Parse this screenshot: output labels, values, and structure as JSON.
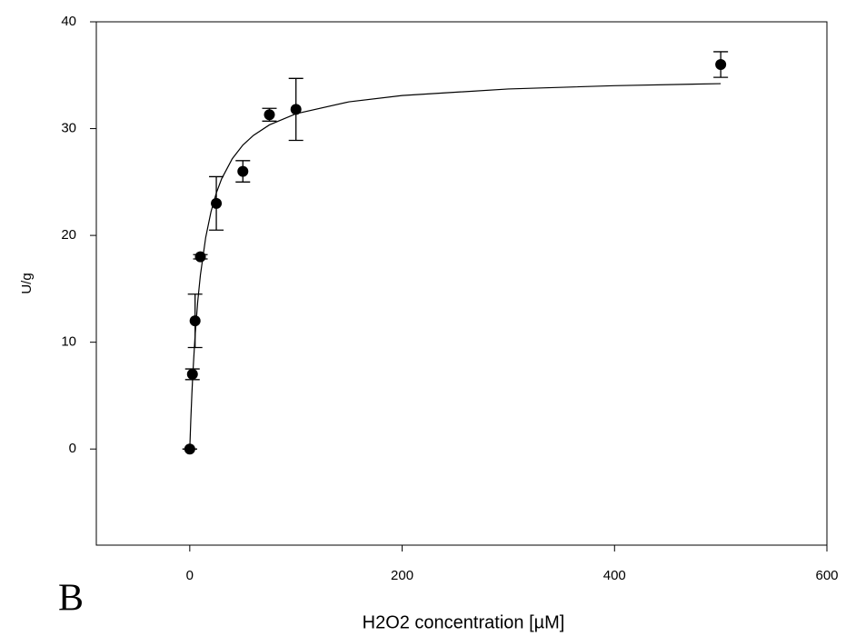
{
  "chart_data": {
    "type": "scatter",
    "xlabel": "H2O2 concentration [µM]",
    "ylabel": "U/g",
    "annotation": "B",
    "xlim": [
      -88,
      600
    ],
    "ylim": [
      -9,
      40
    ],
    "xticks": [
      0,
      200,
      400,
      600
    ],
    "yticks": [
      0,
      10,
      20,
      30,
      40
    ],
    "points": {
      "color": "#000000",
      "x": [
        0,
        2.5,
        5,
        10,
        25,
        50,
        75,
        100,
        500
      ],
      "values": [
        0,
        7,
        12,
        18,
        23,
        26,
        31.3,
        31.8,
        36
      ],
      "errors": [
        0,
        0.5,
        2.5,
        0.2,
        2.5,
        1,
        0.6,
        2.9,
        1.2
      ]
    },
    "fit": {
      "color": "#000000",
      "x": [
        0,
        1,
        2,
        3,
        5,
        7.5,
        10,
        15,
        20,
        25,
        30,
        40,
        50,
        60,
        75,
        100,
        150,
        200,
        300,
        400,
        500
      ],
      "values": [
        0,
        2.8,
        5.19,
        7.24,
        10.61,
        13.82,
        16.28,
        19.81,
        22.22,
        23.97,
        25.3,
        27.18,
        28.46,
        29.37,
        30.35,
        31.39,
        32.51,
        33.1,
        33.71,
        34.02,
        34.21
      ]
    }
  }
}
